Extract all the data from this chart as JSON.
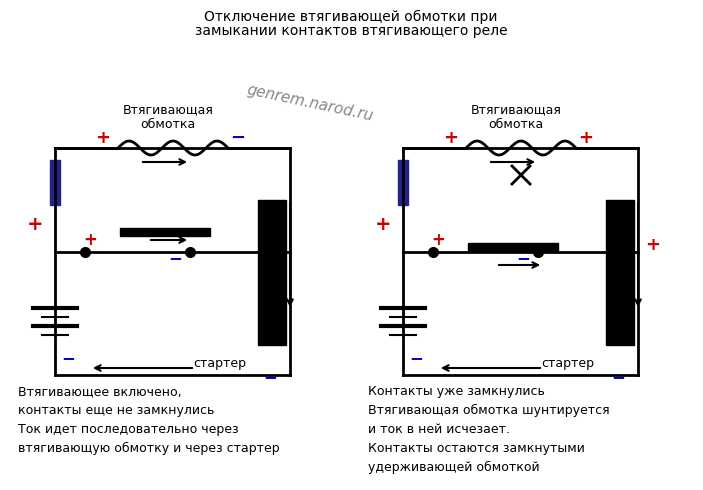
{
  "title_line1": "Отключение втягивающей обмотки при",
  "title_line2": "замыкании контактов втягивающего реле",
  "watermark": "genrem.narod.ru",
  "label_coil1": "Втягивающая\nобмотка",
  "label_coil2": "Втягивающая\nобмотка",
  "label_starter1": "стартер",
  "label_starter2": "стартер",
  "text_left_line1": "Втягивающее включено,",
  "text_left_line2": "контакты еще не замкнулись",
  "text_left_line3": "Ток идет последовательно через",
  "text_left_line4": "втягивающую обмотку и через стартер",
  "text_right_line1": "Контакты уже замкнулись",
  "text_right_line2": "Втягивающая обмотка шунтируется",
  "text_right_line3": "и ток в ней исчезает.",
  "text_right_line4": "Контакты остаются замкнутыми",
  "text_right_line5": "удерживающей обмоткой",
  "bg_color": "#ffffff",
  "line_color": "#000000",
  "red_color": "#cc0000",
  "blue_color": "#0000cc"
}
